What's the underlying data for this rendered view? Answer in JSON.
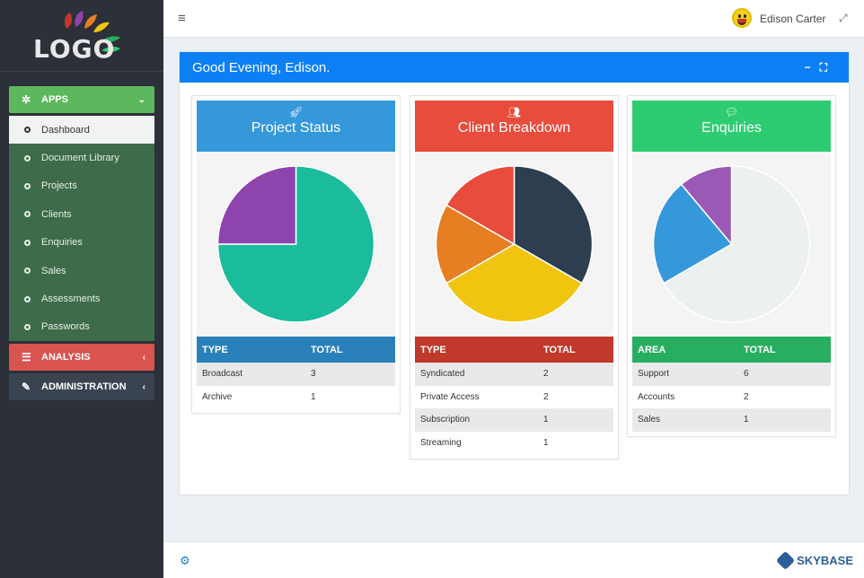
{
  "logo": {
    "text": "LOGO"
  },
  "sidebar": {
    "apps_label": "APPS",
    "items": [
      {
        "label": "Dashboard"
      },
      {
        "label": "Document Library"
      },
      {
        "label": "Projects"
      },
      {
        "label": "Clients"
      },
      {
        "label": "Enquiries"
      },
      {
        "label": "Sales"
      },
      {
        "label": "Assessments"
      },
      {
        "label": "Passwords"
      }
    ],
    "analysis_label": "ANALYSIS",
    "admin_label": "ADMINISTRATION"
  },
  "topbar": {
    "user_name": "Edison Carter"
  },
  "panel": {
    "title": "Good Evening, Edison."
  },
  "cards": [
    {
      "title": "Project Status",
      "icon": "rocket-icon",
      "col1": "TYPE",
      "col2": "TOTAL",
      "rows": [
        [
          "Broadcast",
          "3"
        ],
        [
          "Archive",
          "1"
        ]
      ]
    },
    {
      "title": "Client Breakdown",
      "icon": "users-icon",
      "col1": "TYPE",
      "col2": "TOTAL",
      "rows": [
        [
          "Syndicated",
          "2"
        ],
        [
          "Private Access",
          "2"
        ],
        [
          "Subscription",
          "1"
        ],
        [
          "Streaming",
          "1"
        ]
      ]
    },
    {
      "title": "Enquiries",
      "icon": "comment-icon",
      "col1": "AREA",
      "col2": "TOTAL",
      "rows": [
        [
          "Support",
          "6"
        ],
        [
          "Accounts",
          "2"
        ],
        [
          "Sales",
          "1"
        ]
      ]
    }
  ],
  "colors": {
    "project": {
      "head": "#3498db",
      "table": "#2a80b9",
      "slices": [
        "#1abc9c",
        "#8e44ad"
      ]
    },
    "client": {
      "head": "#e74c3c",
      "table": "#c0392b",
      "slices": [
        "#2c3e50",
        "#f1c40f",
        "#e67e22",
        "#e74c3c"
      ]
    },
    "enquiry": {
      "head": "#2ecc71",
      "table": "#27ae60",
      "slices": [
        "#ecf0f1",
        "#3498db",
        "#9b59b6"
      ]
    }
  },
  "chart_data": [
    {
      "type": "pie",
      "title": "Project Status",
      "labels": [
        "Broadcast",
        "Archive"
      ],
      "values": [
        3,
        1
      ]
    },
    {
      "type": "pie",
      "title": "Client Breakdown",
      "labels": [
        "Syndicated",
        "Private Access",
        "Subscription",
        "Streaming"
      ],
      "values": [
        2,
        2,
        1,
        1
      ]
    },
    {
      "type": "pie",
      "title": "Enquiries",
      "labels": [
        "Support",
        "Accounts",
        "Sales"
      ],
      "values": [
        6,
        2,
        1
      ]
    }
  ],
  "footer": {
    "brand": "SKYBASE"
  }
}
